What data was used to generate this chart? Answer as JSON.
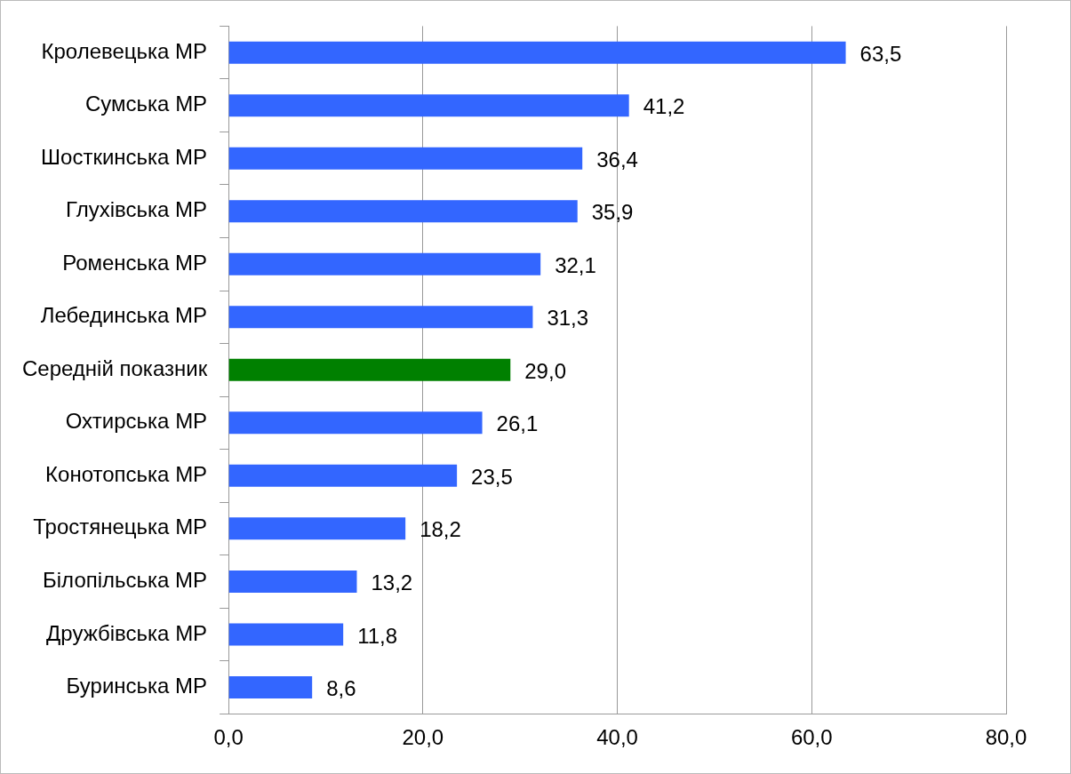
{
  "chart_data": {
    "type": "bar",
    "orientation": "horizontal",
    "categories": [
      "Кролевецька МР",
      "Сумська МР",
      "Шосткинська МР",
      "Глухівська МР",
      "Роменська МР",
      "Лебединська МР",
      "Середній показник",
      "Охтирська МР",
      "Конотопська МР",
      "Тростянецька МР",
      "Білопільська МР",
      "Дружбівська МР",
      "Буринська МР"
    ],
    "values": [
      63.5,
      41.2,
      36.4,
      35.9,
      32.1,
      31.3,
      29.0,
      26.1,
      23.5,
      18.2,
      13.2,
      11.8,
      8.6
    ],
    "value_labels": [
      "63,5",
      "41,2",
      "36,4",
      "35,9",
      "32,1",
      "31,3",
      "29,0",
      "26,1",
      "23,5",
      "18,2",
      "13,2",
      "11,8",
      "8,6"
    ],
    "colors": [
      "#3366ff",
      "#3366ff",
      "#3366ff",
      "#3366ff",
      "#3366ff",
      "#3366ff",
      "#008000",
      "#3366ff",
      "#3366ff",
      "#3366ff",
      "#3366ff",
      "#3366ff",
      "#3366ff"
    ],
    "xlim": [
      0,
      80
    ],
    "xticks": [
      {
        "value": 0,
        "label": "0,0"
      },
      {
        "value": 20,
        "label": "20,0"
      },
      {
        "value": 40,
        "label": "40,0"
      },
      {
        "value": 60,
        "label": "60,0"
      },
      {
        "value": 80,
        "label": "80,0"
      }
    ],
    "grid": "x",
    "legend": false
  }
}
